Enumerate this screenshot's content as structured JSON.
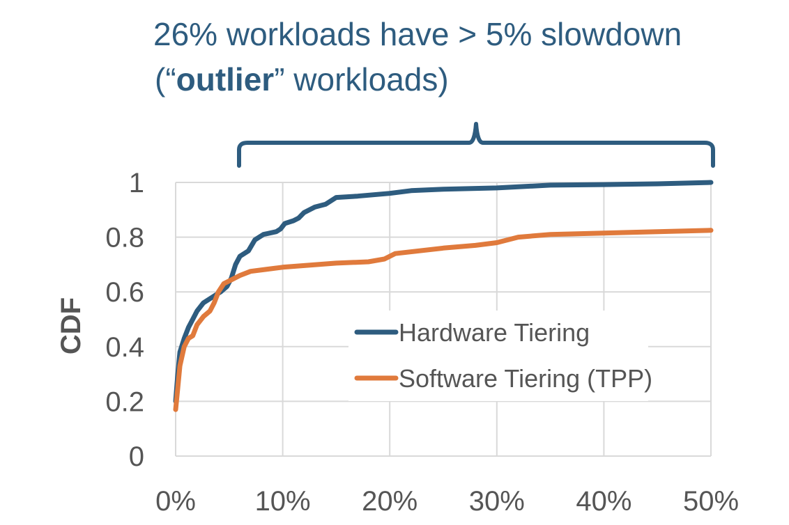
{
  "annotation": {
    "line1": "26% workloads have > 5% slowdown",
    "line2_prefix": "(“",
    "line2_bold": "outlier",
    "line2_suffix": "” workloads)",
    "color": "#2e5c7f"
  },
  "chart_data": {
    "type": "line",
    "title": "",
    "xlabel": "",
    "ylabel": "CDF",
    "xlim": [
      0,
      50
    ],
    "ylim": [
      0,
      1
    ],
    "grid": true,
    "legend_position": "center-right",
    "x_ticks": [
      {
        "value": 0,
        "label": "0%"
      },
      {
        "value": 10,
        "label": "10%"
      },
      {
        "value": 20,
        "label": "20%"
      },
      {
        "value": 30,
        "label": "30%"
      },
      {
        "value": 40,
        "label": "40%"
      },
      {
        "value": 50,
        "label": "50%"
      }
    ],
    "y_ticks": [
      {
        "value": 0,
        "label": "0"
      },
      {
        "value": 0.2,
        "label": "0.2"
      },
      {
        "value": 0.4,
        "label": "0.4"
      },
      {
        "value": 0.6,
        "label": "0.6"
      },
      {
        "value": 0.8,
        "label": "0.8"
      },
      {
        "value": 1,
        "label": "1"
      }
    ],
    "series": [
      {
        "name": "Hardware Tiering",
        "color": "#2e5c7f",
        "points": [
          [
            0,
            0.2
          ],
          [
            0.2,
            0.3
          ],
          [
            0.4,
            0.38
          ],
          [
            0.8,
            0.43
          ],
          [
            1.2,
            0.47
          ],
          [
            1.6,
            0.5
          ],
          [
            2.0,
            0.53
          ],
          [
            2.6,
            0.56
          ],
          [
            3.4,
            0.58
          ],
          [
            4.2,
            0.6
          ],
          [
            4.8,
            0.62
          ],
          [
            5.2,
            0.65
          ],
          [
            5.6,
            0.7
          ],
          [
            6.0,
            0.73
          ],
          [
            6.8,
            0.75
          ],
          [
            7.4,
            0.79
          ],
          [
            8.2,
            0.81
          ],
          [
            9.4,
            0.82
          ],
          [
            9.8,
            0.83
          ],
          [
            10.2,
            0.85
          ],
          [
            11.0,
            0.86
          ],
          [
            11.5,
            0.87
          ],
          [
            12.0,
            0.89
          ],
          [
            13.0,
            0.91
          ],
          [
            14.0,
            0.92
          ],
          [
            15.0,
            0.945
          ],
          [
            17.0,
            0.95
          ],
          [
            20.0,
            0.96
          ],
          [
            22.0,
            0.97
          ],
          [
            25.0,
            0.975
          ],
          [
            30.0,
            0.98
          ],
          [
            35.0,
            0.99
          ],
          [
            40.0,
            0.992
          ],
          [
            45.0,
            0.995
          ],
          [
            50.0,
            1.0
          ]
        ]
      },
      {
        "name": "Software Tiering (TPP)",
        "color": "#e07a3c",
        "points": [
          [
            0,
            0.17
          ],
          [
            0.2,
            0.25
          ],
          [
            0.4,
            0.33
          ],
          [
            0.8,
            0.4
          ],
          [
            1.2,
            0.43
          ],
          [
            1.6,
            0.44
          ],
          [
            2.0,
            0.48
          ],
          [
            2.6,
            0.51
          ],
          [
            3.2,
            0.53
          ],
          [
            3.6,
            0.56
          ],
          [
            4.0,
            0.6
          ],
          [
            4.5,
            0.63
          ],
          [
            5.0,
            0.64
          ],
          [
            6.0,
            0.66
          ],
          [
            7.0,
            0.675
          ],
          [
            10.0,
            0.69
          ],
          [
            15.0,
            0.705
          ],
          [
            18.0,
            0.71
          ],
          [
            19.5,
            0.72
          ],
          [
            20.5,
            0.74
          ],
          [
            25.0,
            0.76
          ],
          [
            28.0,
            0.77
          ],
          [
            30.0,
            0.78
          ],
          [
            32.0,
            0.8
          ],
          [
            35.0,
            0.81
          ],
          [
            40.0,
            0.815
          ],
          [
            45.0,
            0.82
          ],
          [
            50.0,
            0.825
          ]
        ]
      }
    ]
  }
}
